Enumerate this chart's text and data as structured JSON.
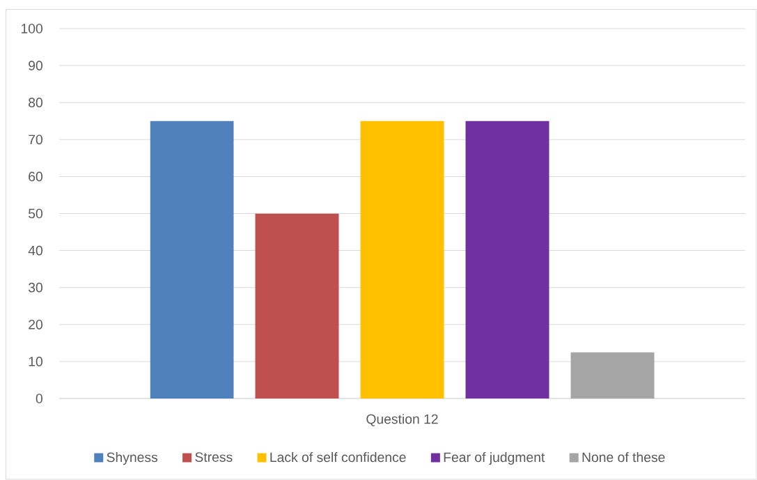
{
  "chart_data": {
    "type": "bar",
    "categories": [
      "Question 12"
    ],
    "series": [
      {
        "name": "Shyness",
        "color": "#4f81bd",
        "values": [
          75
        ]
      },
      {
        "name": "Stress",
        "color": "#c0504d",
        "values": [
          50
        ]
      },
      {
        "name": "Lack of self confidence",
        "color": "#ffc000",
        "values": [
          75
        ]
      },
      {
        "name": "Fear of judgment",
        "color": "#7030a0",
        "values": [
          75
        ]
      },
      {
        "name": "None of these",
        "color": "#a5a5a5",
        "values": [
          12.5
        ]
      }
    ],
    "ylim": [
      0,
      100
    ],
    "yticks": [
      0,
      10,
      20,
      30,
      40,
      50,
      60,
      70,
      80,
      90,
      100
    ],
    "grid": "y",
    "legend": "bottom"
  }
}
